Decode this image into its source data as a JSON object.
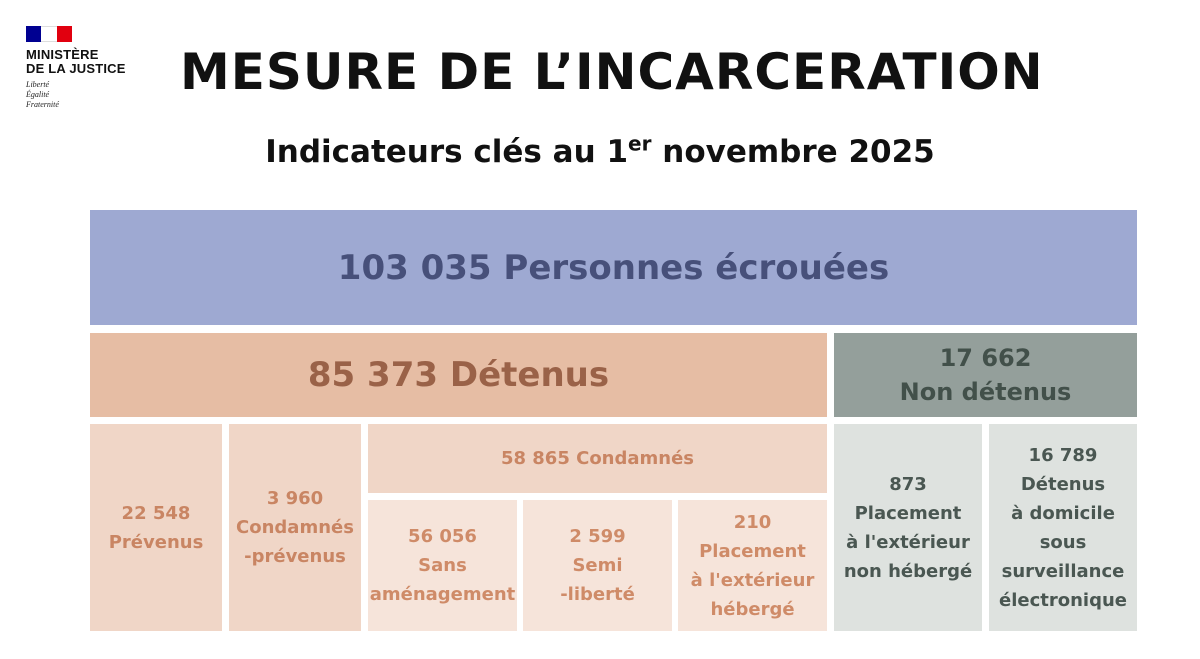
{
  "logo": {
    "name_lines": [
      "MINISTÈRE",
      "DE LA JUSTICE"
    ],
    "motto_lines": [
      "Liberté",
      "Égalité",
      "Fraternité"
    ],
    "flag_colors": [
      "#000091",
      "#ffffff",
      "#e1000f"
    ]
  },
  "title": "MESURE DE L’INCARCERATION",
  "subtitle": {
    "before": "Indicateurs clés au 1",
    "sup": "er",
    "after": " novembre 2025"
  },
  "colors": {
    "total_bg": "#9ea9d2",
    "detenus_bg": "#e6bda4",
    "non_detenus_bg": "#949f9b",
    "detenus_sub_bg": "#f0d6c7",
    "non_detenus_sub_bg": "#dee2df"
  },
  "tree": {
    "total": "103 035 Personnes écrouées",
    "detenus": "85 373 Détenus",
    "non_detenus": {
      "value": "17 662",
      "label": "Non détenus"
    },
    "prevenus": {
      "value": "22 548",
      "label": "Prévenus"
    },
    "condamnes_prevenus": {
      "value": "3 960",
      "lines": [
        "Condamnés",
        "-prévenus"
      ]
    },
    "condamnes": "58 865 Condamnés",
    "sans_amenagement": {
      "value": "56 056",
      "lines": [
        "Sans",
        "aménagement"
      ]
    },
    "semi_liberte": {
      "value": "2 599",
      "lines": [
        "Semi",
        "-liberté"
      ]
    },
    "placement_heberge": {
      "value": "210",
      "lines": [
        "Placement",
        "à l'extérieur",
        "hébergé"
      ]
    },
    "placement_non_heberge": {
      "value": "873",
      "lines": [
        "Placement",
        "à l'extérieur",
        "non hébergé"
      ]
    },
    "domicile_surveillance": {
      "value": "16 789",
      "lines": [
        "Détenus",
        "à domicile",
        "sous",
        "surveillance",
        "électronique"
      ]
    }
  }
}
